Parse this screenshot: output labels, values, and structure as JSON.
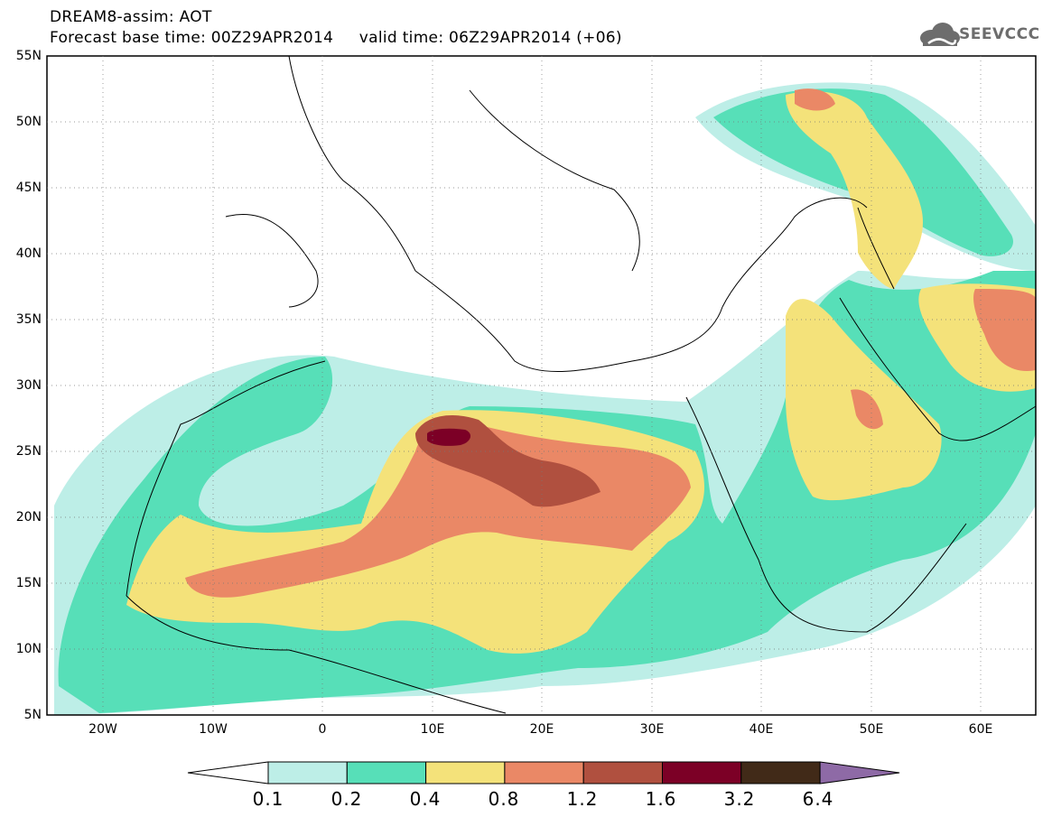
{
  "title": {
    "line1": "DREAM8-assim: AOT",
    "line2": "Forecast base time: 00Z29APR2014     valid time: 06Z29APR2014 (+06)"
  },
  "logo": {
    "text": "SEEVCCC",
    "icon": "cloud-icon"
  },
  "map": {
    "lat_range": [
      5,
      55
    ],
    "lon_range": [
      -25,
      65
    ],
    "lat_labels": [
      "55N",
      "50N",
      "45N",
      "40N",
      "35N",
      "30N",
      "25N",
      "20N",
      "15N",
      "10N",
      "5N"
    ],
    "lon_labels": [
      "20W",
      "10W",
      "0",
      "10E",
      "20E",
      "30E",
      "40E",
      "50E",
      "60E"
    ]
  },
  "colorbar": {
    "labels": [
      "0.1",
      "0.2",
      "0.4",
      "0.8",
      "1.2",
      "1.6",
      "3.2",
      "6.4"
    ],
    "colors": [
      "#ffffff",
      "#bdeee7",
      "#57dfb8",
      "#f4e27a",
      "#ea8866",
      "#b0503f",
      "#7c0026",
      "#412a18",
      "#8e6aa6"
    ]
  }
}
